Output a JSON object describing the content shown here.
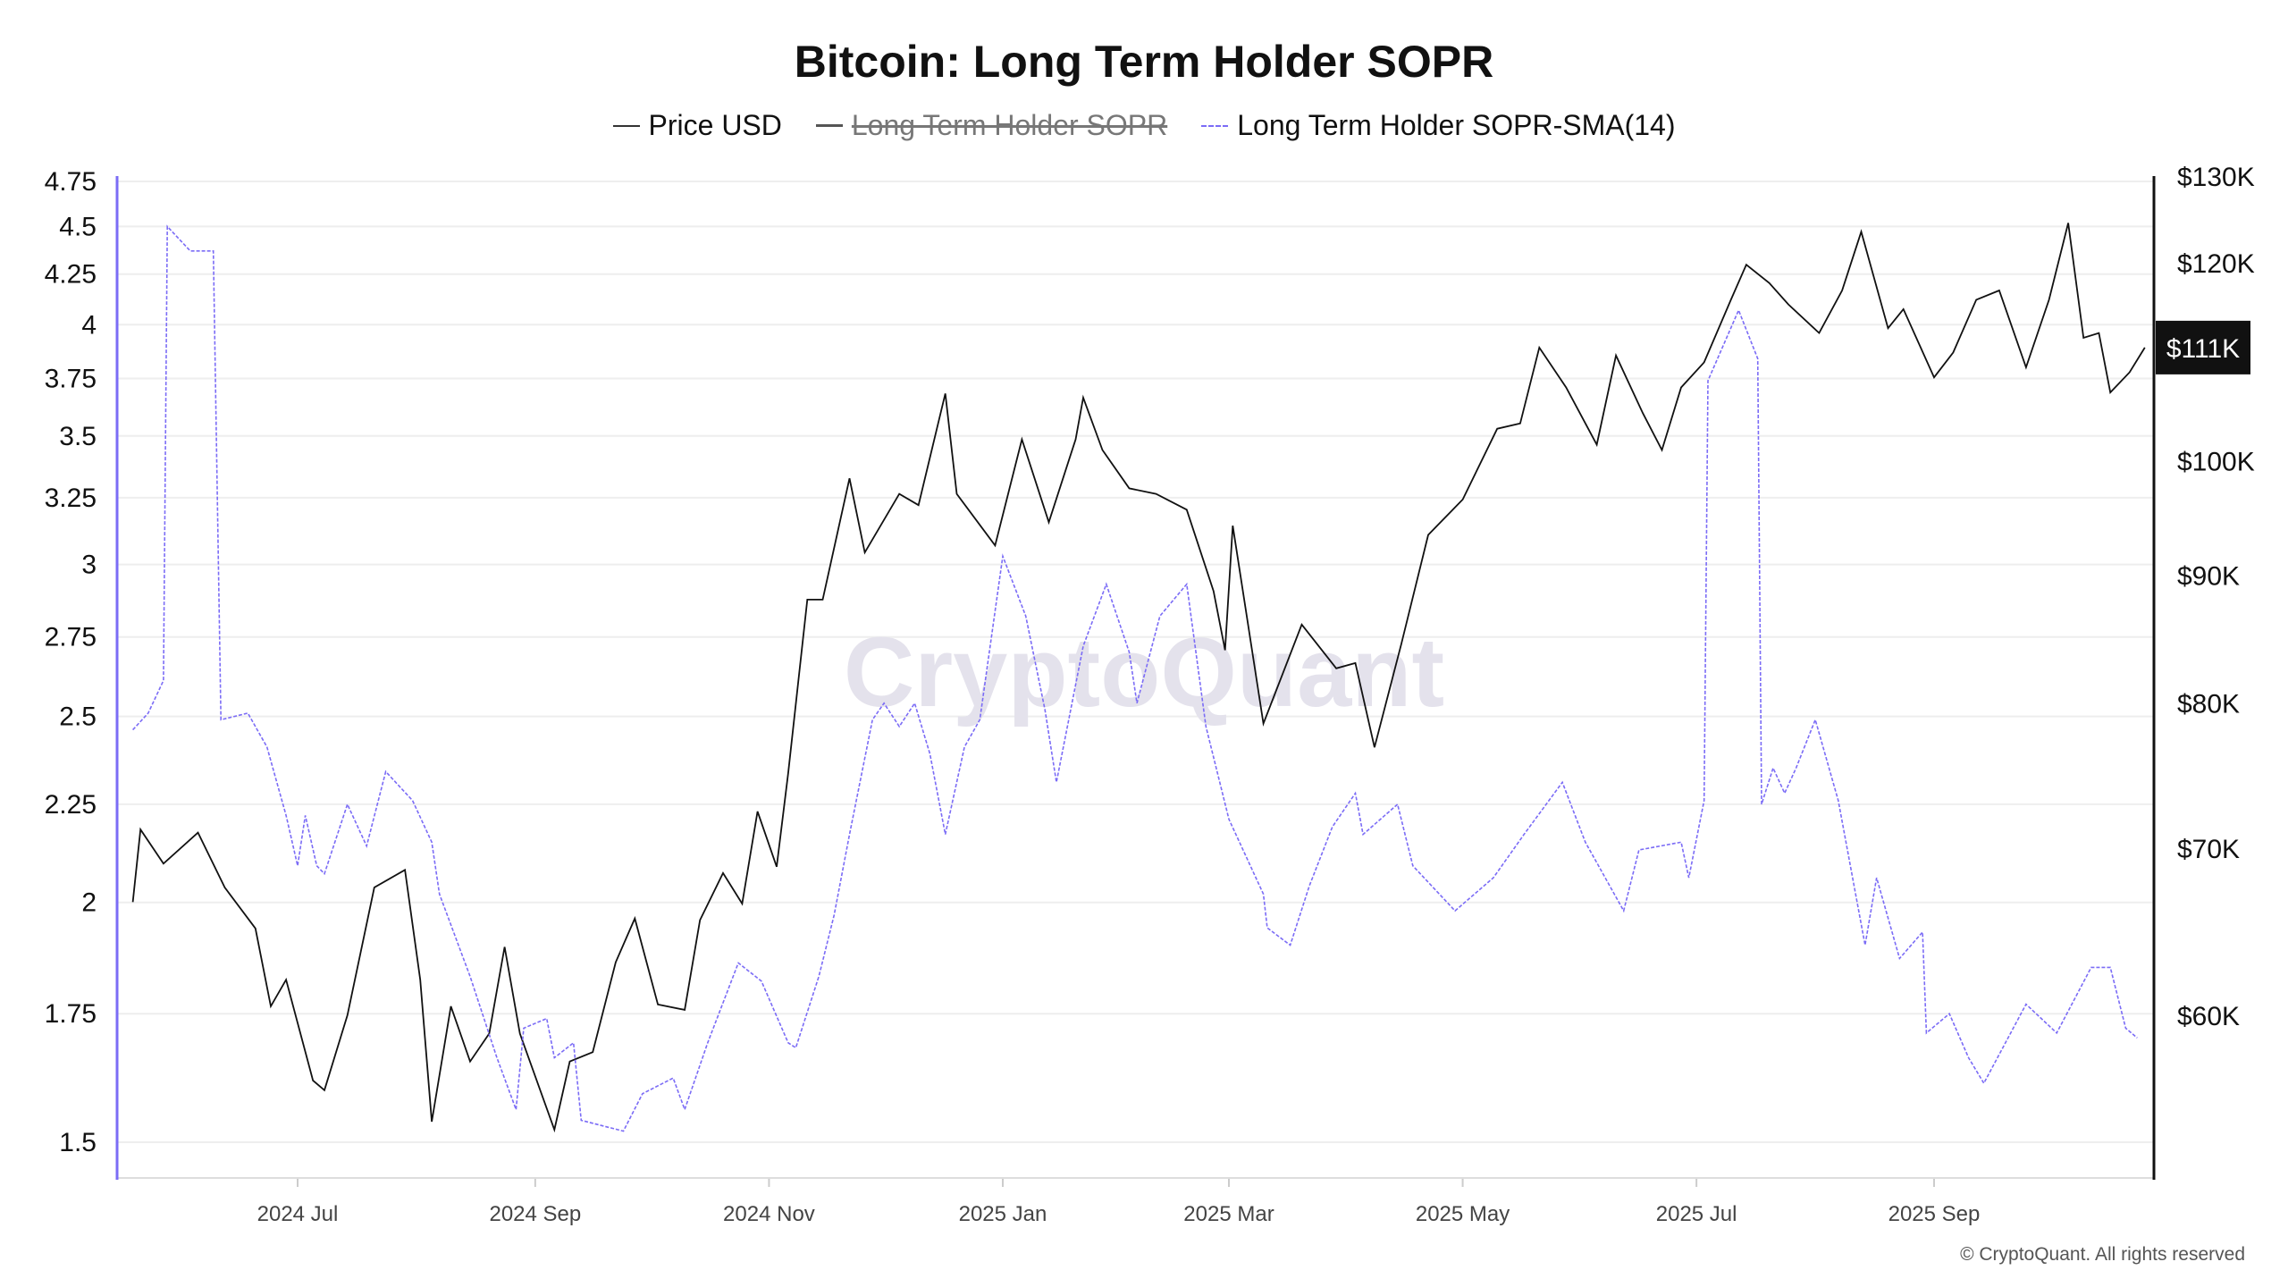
{
  "chart_data": {
    "type": "line",
    "title": "Bitcoin: Long Term Holder SOPR",
    "legend": [
      {
        "name": "Price USD",
        "color": "#111111",
        "style": "solid",
        "visible": true
      },
      {
        "name": "Long Term Holder SOPR",
        "color": "#555555",
        "style": "solid",
        "visible": false
      },
      {
        "name": "Long Term Holder SOPR-SMA(14)",
        "color": "#7b6cf6",
        "style": "dashed",
        "visible": true
      }
    ],
    "legend_placement": "top-center",
    "grid": true,
    "y_left": {
      "scale": "log",
      "range": [
        1.45,
        4.8
      ],
      "ticks": [
        "1.5",
        "1.75",
        "2",
        "2.25",
        "2.5",
        "2.75",
        "3",
        "3.25",
        "3.5",
        "3.75",
        "4",
        "4.25",
        "4.5",
        "4.75"
      ],
      "color": "#7b6cf6"
    },
    "y_right": {
      "scale": "log",
      "range": [
        50000,
        130000
      ],
      "ticks": [
        {
          "v": 60000,
          "label": "$60K"
        },
        {
          "v": 70000,
          "label": "$70K"
        },
        {
          "v": 80000,
          "label": "$80K"
        },
        {
          "v": 90000,
          "label": "$90K"
        },
        {
          "v": 100000,
          "label": "$100K"
        },
        {
          "v": 120000,
          "label": "$120K"
        },
        {
          "v": 130000,
          "label": "$130K"
        }
      ],
      "current_label": "$111K",
      "current_value": 111000
    },
    "x_axis": {
      "range": [
        "2024-05-19",
        "2025-10-26"
      ],
      "ticks": [
        {
          "d": "2024-07-01",
          "label": "2024 Jul"
        },
        {
          "d": "2024-09-01",
          "label": "2024 Sep"
        },
        {
          "d": "2024-11-01",
          "label": "2024 Nov"
        },
        {
          "d": "2025-01-01",
          "label": "2025 Jan"
        },
        {
          "d": "2025-03-01",
          "label": "2025 Mar"
        },
        {
          "d": "2025-05-01",
          "label": "2025 May"
        },
        {
          "d": "2025-07-01",
          "label": "2025 Jul"
        },
        {
          "d": "2025-09-01",
          "label": "2025 Sep"
        }
      ]
    },
    "series": [
      {
        "name": "Price USD",
        "axis": "right",
        "points": [
          [
            "2024-05-19",
            66600
          ],
          [
            "2024-05-21",
            71200
          ],
          [
            "2024-05-27",
            69000
          ],
          [
            "2024-06-05",
            71000
          ],
          [
            "2024-06-12",
            67500
          ],
          [
            "2024-06-20",
            65000
          ],
          [
            "2024-06-24",
            60500
          ],
          [
            "2024-06-28",
            62000
          ],
          [
            "2024-07-05",
            56500
          ],
          [
            "2024-07-08",
            56000
          ],
          [
            "2024-07-14",
            60000
          ],
          [
            "2024-07-21",
            67500
          ],
          [
            "2024-07-29",
            68600
          ],
          [
            "2024-08-02",
            62000
          ],
          [
            "2024-08-05",
            54400
          ],
          [
            "2024-08-10",
            60500
          ],
          [
            "2024-08-15",
            57500
          ],
          [
            "2024-08-20",
            59000
          ],
          [
            "2024-08-24",
            63900
          ],
          [
            "2024-08-28",
            59000
          ],
          [
            "2024-09-06",
            54000
          ],
          [
            "2024-09-10",
            57500
          ],
          [
            "2024-09-16",
            58000
          ],
          [
            "2024-09-22",
            63000
          ],
          [
            "2024-09-27",
            65600
          ],
          [
            "2024-10-03",
            60600
          ],
          [
            "2024-10-10",
            60300
          ],
          [
            "2024-10-14",
            65500
          ],
          [
            "2024-10-20",
            68400
          ],
          [
            "2024-10-25",
            66500
          ],
          [
            "2024-10-29",
            72400
          ],
          [
            "2024-11-03",
            68800
          ],
          [
            "2024-11-06",
            75000
          ],
          [
            "2024-11-11",
            88000
          ],
          [
            "2024-11-15",
            88000
          ],
          [
            "2024-11-22",
            98400
          ],
          [
            "2024-11-26",
            91900
          ],
          [
            "2024-12-05",
            97000
          ],
          [
            "2024-12-10",
            96000
          ],
          [
            "2024-12-17",
            106400
          ],
          [
            "2024-12-20",
            97000
          ],
          [
            "2024-12-30",
            92500
          ],
          [
            "2025-01-06",
            102000
          ],
          [
            "2025-01-13",
            94500
          ],
          [
            "2025-01-20",
            102000
          ],
          [
            "2025-01-22",
            106000
          ],
          [
            "2025-01-27",
            101000
          ],
          [
            "2025-02-03",
            97500
          ],
          [
            "2025-02-10",
            97000
          ],
          [
            "2025-02-18",
            95600
          ],
          [
            "2025-02-25",
            88700
          ],
          [
            "2025-02-28",
            84000
          ],
          [
            "2025-03-02",
            94200
          ],
          [
            "2025-03-10",
            78500
          ],
          [
            "2025-03-20",
            86000
          ],
          [
            "2025-03-29",
            82600
          ],
          [
            "2025-04-03",
            83000
          ],
          [
            "2025-04-08",
            76800
          ],
          [
            "2025-04-15",
            84500
          ],
          [
            "2025-04-22",
            93400
          ],
          [
            "2025-05-01",
            96500
          ],
          [
            "2025-05-10",
            103000
          ],
          [
            "2025-05-16",
            103500
          ],
          [
            "2025-05-21",
            111000
          ],
          [
            "2025-05-28",
            107000
          ],
          [
            "2025-06-05",
            101500
          ],
          [
            "2025-06-10",
            110200
          ],
          [
            "2025-06-17",
            104500
          ],
          [
            "2025-06-22",
            101000
          ],
          [
            "2025-06-27",
            107000
          ],
          [
            "2025-07-03",
            109500
          ],
          [
            "2025-07-10",
            116000
          ],
          [
            "2025-07-14",
            119800
          ],
          [
            "2025-07-20",
            117800
          ],
          [
            "2025-07-25",
            115500
          ],
          [
            "2025-08-02",
            112500
          ],
          [
            "2025-08-08",
            117000
          ],
          [
            "2025-08-13",
            123500
          ],
          [
            "2025-08-20",
            113000
          ],
          [
            "2025-08-24",
            115000
          ],
          [
            "2025-09-01",
            108000
          ],
          [
            "2025-09-06",
            110500
          ],
          [
            "2025-09-12",
            116000
          ],
          [
            "2025-09-18",
            117000
          ],
          [
            "2025-09-25",
            109000
          ],
          [
            "2025-10-01",
            116000
          ],
          [
            "2025-10-06",
            124500
          ],
          [
            "2025-10-10",
            112000
          ],
          [
            "2025-10-14",
            112500
          ],
          [
            "2025-10-17",
            106500
          ],
          [
            "2025-10-22",
            108500
          ],
          [
            "2025-10-26",
            111000
          ]
        ]
      },
      {
        "name": "Long Term Holder SOPR-SMA(14)",
        "axis": "left",
        "points": [
          [
            "2024-05-19",
            2.46
          ],
          [
            "2024-05-23",
            2.51
          ],
          [
            "2024-05-27",
            2.61
          ],
          [
            "2024-05-28",
            4.5
          ],
          [
            "2024-06-03",
            4.37
          ],
          [
            "2024-06-09",
            4.37
          ],
          [
            "2024-06-11",
            2.49
          ],
          [
            "2024-06-18",
            2.51
          ],
          [
            "2024-06-23",
            2.41
          ],
          [
            "2024-06-28",
            2.22
          ],
          [
            "2024-07-01",
            2.09
          ],
          [
            "2024-07-03",
            2.22
          ],
          [
            "2024-07-06",
            2.09
          ],
          [
            "2024-07-08",
            2.07
          ],
          [
            "2024-07-14",
            2.25
          ],
          [
            "2024-07-19",
            2.14
          ],
          [
            "2024-07-24",
            2.34
          ],
          [
            "2024-07-31",
            2.26
          ],
          [
            "2024-08-05",
            2.15
          ],
          [
            "2024-08-07",
            2.02
          ],
          [
            "2024-08-15",
            1.83
          ],
          [
            "2024-08-22",
            1.66
          ],
          [
            "2024-08-27",
            1.56
          ],
          [
            "2024-08-29",
            1.72
          ],
          [
            "2024-09-04",
            1.74
          ],
          [
            "2024-09-06",
            1.66
          ],
          [
            "2024-09-11",
            1.69
          ],
          [
            "2024-09-13",
            1.54
          ],
          [
            "2024-09-24",
            1.52
          ],
          [
            "2024-09-29",
            1.59
          ],
          [
            "2024-10-07",
            1.62
          ],
          [
            "2024-10-10",
            1.56
          ],
          [
            "2024-10-16",
            1.69
          ],
          [
            "2024-10-24",
            1.86
          ],
          [
            "2024-10-30",
            1.82
          ],
          [
            "2024-11-06",
            1.69
          ],
          [
            "2024-11-08",
            1.68
          ],
          [
            "2024-11-14",
            1.83
          ],
          [
            "2024-11-18",
            1.97
          ],
          [
            "2024-11-22",
            2.17
          ],
          [
            "2024-11-28",
            2.49
          ],
          [
            "2024-12-01",
            2.54
          ],
          [
            "2024-12-05",
            2.47
          ],
          [
            "2024-12-09",
            2.54
          ],
          [
            "2024-12-13",
            2.39
          ],
          [
            "2024-12-17",
            2.17
          ],
          [
            "2024-12-22",
            2.41
          ],
          [
            "2024-12-26",
            2.49
          ],
          [
            "2025-01-01",
            3.03
          ],
          [
            "2025-01-07",
            2.82
          ],
          [
            "2025-01-12",
            2.52
          ],
          [
            "2025-01-15",
            2.31
          ],
          [
            "2025-01-22",
            2.72
          ],
          [
            "2025-01-28",
            2.93
          ],
          [
            "2025-02-03",
            2.7
          ],
          [
            "2025-02-05",
            2.54
          ],
          [
            "2025-02-11",
            2.82
          ],
          [
            "2025-02-18",
            2.93
          ],
          [
            "2025-02-23",
            2.47
          ],
          [
            "2025-03-01",
            2.21
          ],
          [
            "2025-03-10",
            2.02
          ],
          [
            "2025-03-11",
            1.94
          ],
          [
            "2025-03-17",
            1.9
          ],
          [
            "2025-03-22",
            2.04
          ],
          [
            "2025-03-28",
            2.19
          ],
          [
            "2025-04-03",
            2.28
          ],
          [
            "2025-04-05",
            2.17
          ],
          [
            "2025-04-14",
            2.25
          ],
          [
            "2025-04-18",
            2.09
          ],
          [
            "2025-04-29",
            1.98
          ],
          [
            "2025-05-09",
            2.06
          ],
          [
            "2025-05-17",
            2.17
          ],
          [
            "2025-05-27",
            2.31
          ],
          [
            "2025-06-02",
            2.15
          ],
          [
            "2025-06-12",
            1.98
          ],
          [
            "2025-06-16",
            2.13
          ],
          [
            "2025-06-27",
            2.15
          ],
          [
            "2025-06-29",
            2.06
          ],
          [
            "2025-07-03",
            2.26
          ],
          [
            "2025-07-04",
            3.74
          ],
          [
            "2025-07-12",
            4.07
          ],
          [
            "2025-07-17",
            3.84
          ],
          [
            "2025-07-18",
            2.25
          ],
          [
            "2025-07-21",
            2.35
          ],
          [
            "2025-07-24",
            2.28
          ],
          [
            "2025-07-27",
            2.35
          ],
          [
            "2025-08-01",
            2.49
          ],
          [
            "2025-08-07",
            2.26
          ],
          [
            "2025-08-14",
            1.9
          ],
          [
            "2025-08-17",
            2.06
          ],
          [
            "2025-08-23",
            1.87
          ],
          [
            "2025-08-29",
            1.93
          ],
          [
            "2025-08-30",
            1.71
          ],
          [
            "2025-09-05",
            1.75
          ],
          [
            "2025-09-10",
            1.66
          ],
          [
            "2025-09-14",
            1.61
          ],
          [
            "2025-09-25",
            1.77
          ],
          [
            "2025-10-03",
            1.71
          ],
          [
            "2025-10-12",
            1.85
          ],
          [
            "2025-10-17",
            1.85
          ],
          [
            "2025-10-21",
            1.72
          ],
          [
            "2025-10-24",
            1.7
          ]
        ]
      }
    ],
    "watermark": "CryptoQuant"
  },
  "footer": "© CryptoQuant. All rights reserved"
}
